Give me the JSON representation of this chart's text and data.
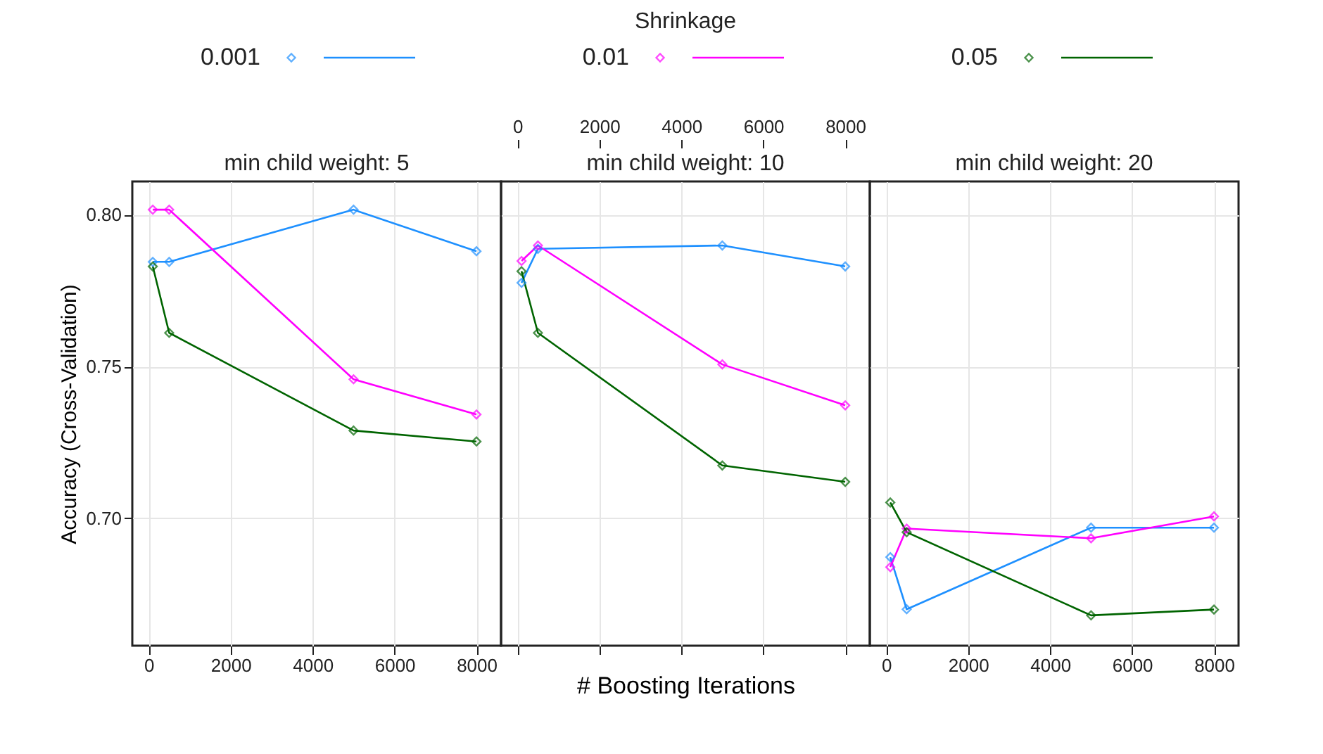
{
  "chart_data": [
    {
      "type": "line",
      "title": "min child weight: 5",
      "ylabel": "Accuracy (Cross-Validation)",
      "legend_title": "Shrinkage",
      "legend": "top",
      "marker": "diamond",
      "line_style": "solid",
      "grid": true,
      "x": [
        100,
        500,
        5000,
        8000
      ],
      "xlim": [
        -400,
        8600
      ],
      "xticks": [
        0,
        2000,
        4000,
        6000,
        8000
      ],
      "ylim": [
        0.658,
        0.811
      ],
      "yticks": [
        {
          "value": 0.7,
          "label": "0.70"
        },
        0.75,
        {
          "value": 0.8,
          "label": "0.80"
        }
      ],
      "series": [
        {
          "name": "0.001",
          "color": "#1e90ff",
          "values": [
            0.7845,
            0.7845,
            0.8017,
            0.788
          ]
        },
        {
          "name": "0.01",
          "color": "#ff00ff",
          "values": [
            0.8017,
            0.8017,
            0.7458,
            0.7342
          ]
        },
        {
          "name": "0.05",
          "color": "#006400",
          "values": [
            0.783,
            0.7611,
            0.7289,
            0.7253
          ]
        }
      ]
    },
    {
      "type": "line",
      "title": "min child weight: 10",
      "xlabel": "# Boosting Iterations",
      "marker": "diamond",
      "line_style": "solid",
      "grid": true,
      "x": [
        100,
        500,
        5000,
        8000
      ],
      "xlim": [
        -400,
        8600
      ],
      "xticks": [
        0,
        2000,
        4000,
        6000,
        8000
      ],
      "x2lim": [
        -400,
        8600
      ],
      "x2ticks": [
        0,
        2000,
        4000,
        6000,
        8000
      ],
      "ylim": [
        0.658,
        0.811
      ],
      "yticks": [
        0.7,
        0.75,
        0.8
      ],
      "tick_labels": false,
      "series": [
        {
          "color": "#1e90ff",
          "values": [
            0.7776,
            0.7888,
            0.7899,
            0.783
          ]
        },
        {
          "color": "#ff00ff",
          "values": [
            0.7848,
            0.7899,
            0.7507,
            0.7372
          ]
        },
        {
          "color": "#006400",
          "values": [
            0.7814,
            0.7611,
            0.7174,
            0.712
          ]
        }
      ]
    },
    {
      "type": "line",
      "title": "min child weight: 20",
      "marker": "diamond",
      "line_style": "solid",
      "grid": true,
      "x": [
        100,
        500,
        5000,
        8000
      ],
      "xlim": [
        -400,
        8600
      ],
      "xticks": [
        0,
        2000,
        4000,
        6000,
        8000
      ],
      "ylim": [
        0.658,
        0.811
      ],
      "yticks": [
        0.7,
        0.75,
        0.8
      ],
      "tick_labels": "x",
      "series": [
        {
          "color": "#1e90ff",
          "values": [
            0.6872,
            0.67,
            0.6969,
            0.6969
          ]
        },
        {
          "color": "#ff00ff",
          "values": [
            0.6839,
            0.6966,
            0.6934,
            0.7006
          ]
        },
        {
          "color": "#006400",
          "values": [
            0.7052,
            0.6954,
            0.668,
            0.6699
          ]
        }
      ]
    }
  ]
}
